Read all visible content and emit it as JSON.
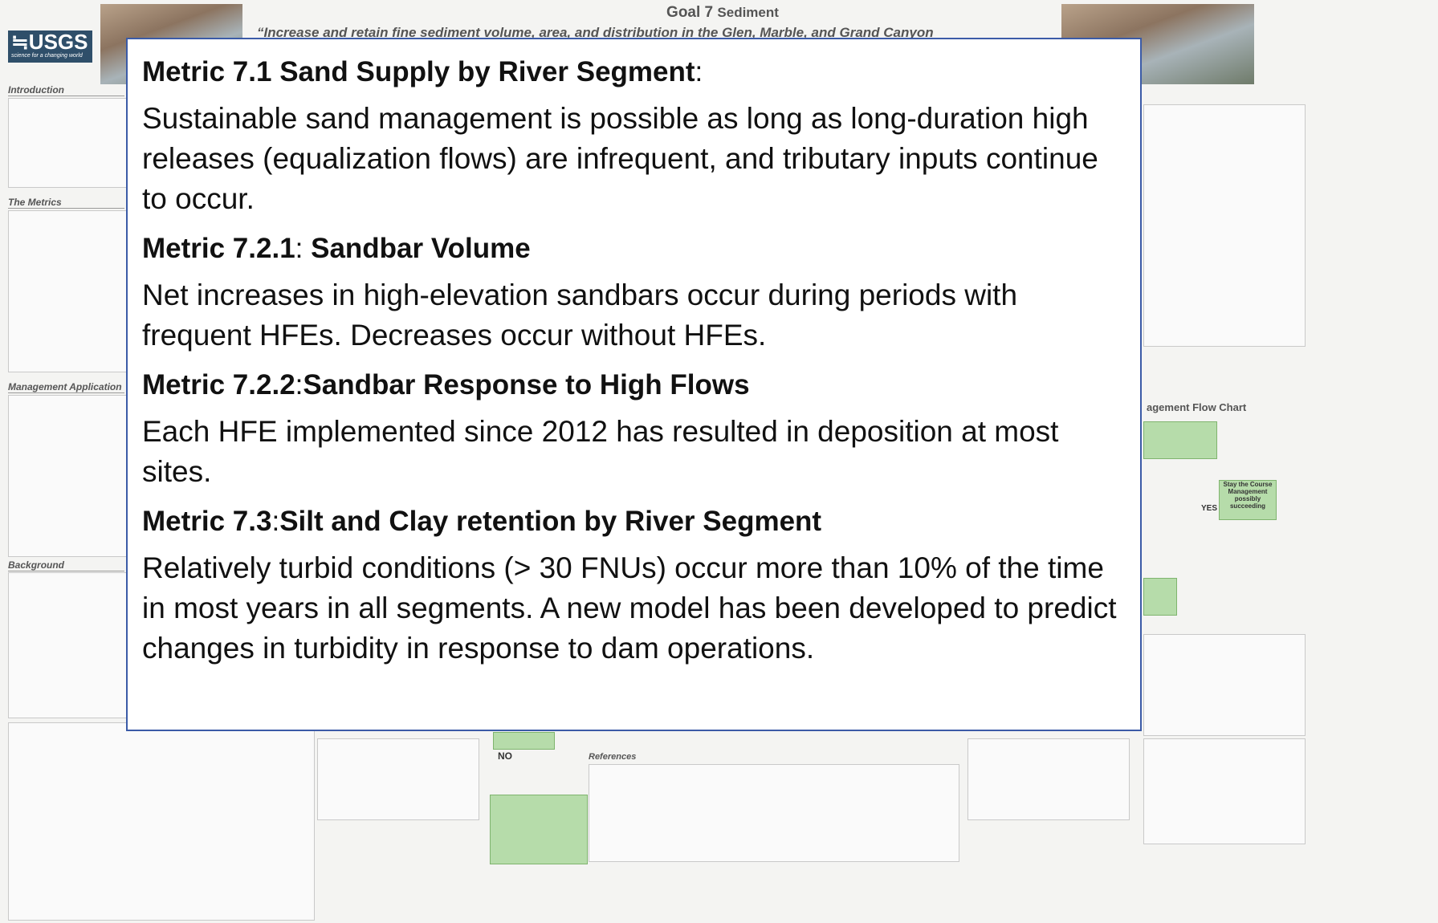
{
  "poster": {
    "goal": "Goal 7",
    "goal_topic": "Sediment",
    "subtitle": "“Increase and retain fine sediment volume, area, and distribution in the Glen, Marble, and Grand Canyon",
    "logo": "≒USGS",
    "logo_tagline": "science for a changing world",
    "sections": [
      "Introduction",
      "The Metrics",
      "Management Application",
      "Background"
    ],
    "flow_no": "NO",
    "flow_yes": "YES",
    "flow_box": "Stay the Course Management possibly succeeding",
    "references": "References",
    "flow_chart": "agement Flow Chart"
  },
  "overlay": {
    "metrics": [
      {
        "heading": [
          {
            "text": "Metric 7.1 Sand Supply by River Segment",
            "bold": true
          },
          {
            "text": ":",
            "bold": false
          }
        ],
        "text": "Sustainable sand management is possible as long as long-duration high releases (equalization flows) are infrequent, and tributary inputs continue to occur."
      },
      {
        "heading": [
          {
            "text": "Metric 7.2.1",
            "bold": true
          },
          {
            "text": ": ",
            "bold": false
          },
          {
            "text": "Sandbar Volume",
            "bold": true
          }
        ],
        "text": "Net increases in high-elevation sandbars occur during periods with frequent HFEs. Decreases occur without HFEs."
      },
      {
        "heading": [
          {
            "text": "Metric 7.2.2",
            "bold": true
          },
          {
            "text": ":",
            "bold": false
          },
          {
            "text": "Sandbar Response to High Flows",
            "bold": true
          }
        ],
        "text": "Each HFE implemented since 2012 has resulted in deposition at most sites."
      },
      {
        "heading": [
          {
            "text": "Metric 7.3",
            "bold": true
          },
          {
            "text": ":",
            "bold": false
          },
          {
            "text": "Silt and Clay retention by River Segment",
            "bold": true
          }
        ],
        "text": "Relatively turbid conditions (> 30 FNUs) occur more than 10% of the time in most years in all segments. A new model has been developed to predict changes in turbidity in response to dam operations."
      }
    ]
  }
}
